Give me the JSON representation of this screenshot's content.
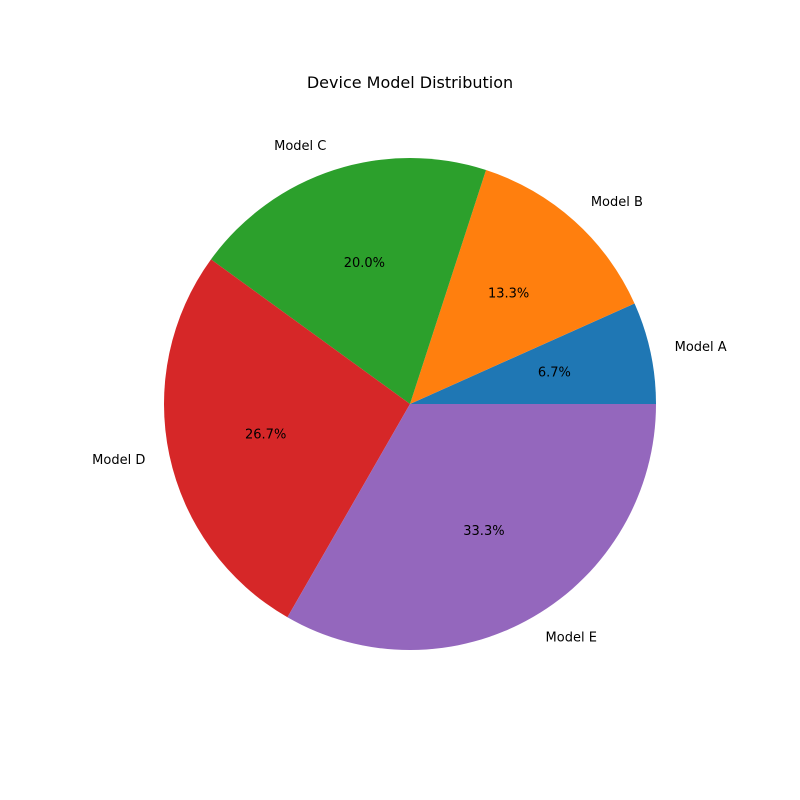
{
  "chart_data": {
    "type": "pie",
    "title": "Device Model Distribution",
    "categories": [
      "Model A",
      "Model B",
      "Model C",
      "Model D",
      "Model E"
    ],
    "values": [
      6.7,
      13.3,
      20.0,
      26.7,
      33.3
    ],
    "percent_labels": [
      "6.7%",
      "13.3%",
      "20.0%",
      "26.7%",
      "33.3%"
    ],
    "colors": [
      "#1f77b4",
      "#ff7f0e",
      "#2ca02c",
      "#d62728",
      "#9467bd"
    ],
    "start_angle_deg": 0,
    "direction": "counterclockwise"
  }
}
